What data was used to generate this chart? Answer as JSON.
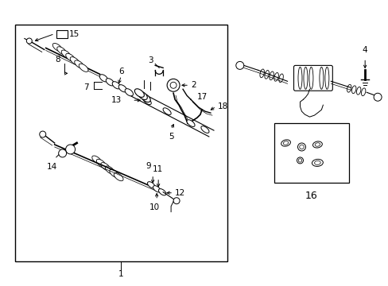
{
  "background_color": "#ffffff",
  "border_color": "#000000",
  "line_color": "#000000",
  "text_color": "#000000",
  "fig_width": 4.89,
  "fig_height": 3.6,
  "dpi": 100
}
